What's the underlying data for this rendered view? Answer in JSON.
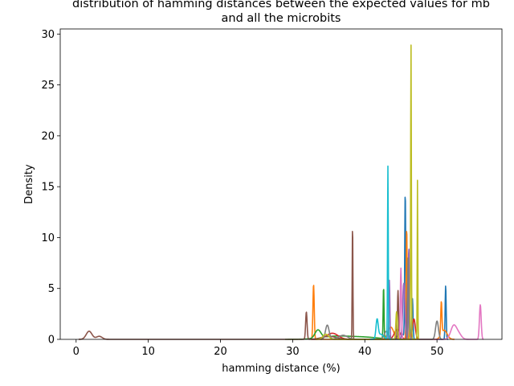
{
  "chart_data": {
    "type": "line",
    "title_lines": [
      "distribution of hamming distances between the expected values for mb",
      "and all the microbits"
    ],
    "xlabel": "hamming distance (%)",
    "ylabel": "Density",
    "xlim": [
      -2.2,
      59
    ],
    "ylim": [
      0,
      30.5
    ],
    "xticks": [
      0,
      10,
      20,
      30,
      40,
      50
    ],
    "yticks": [
      0,
      5,
      10,
      15,
      20,
      25,
      30
    ],
    "grid": false,
    "legend": "none",
    "series": [
      {
        "color": "#1f77b4",
        "peaks": [
          [
            45.6,
            14.3,
            0.07
          ],
          [
            46.6,
            4.0,
            0.08
          ],
          [
            51.2,
            5.3,
            0.07
          ],
          [
            45.0,
            0.6,
            0.4
          ]
        ]
      },
      {
        "color": "#ff7f0e",
        "peaks": [
          [
            32.9,
            5.4,
            0.09
          ],
          [
            45.8,
            11.0,
            0.07
          ],
          [
            50.6,
            3.2,
            0.08
          ],
          [
            43.6,
            1.2,
            0.4
          ],
          [
            51.0,
            0.9,
            0.4
          ]
        ]
      },
      {
        "color": "#2ca02c",
        "peaks": [
          [
            42.6,
            5.1,
            0.06
          ],
          [
            33.5,
            0.8,
            0.4
          ],
          [
            36.0,
            0.3,
            2.0
          ],
          [
            40.0,
            0.2,
            2.0
          ]
        ]
      },
      {
        "color": "#d62728",
        "peaks": [
          [
            46.0,
            6.5,
            0.1
          ],
          [
            46.8,
            2.0,
            0.2
          ],
          [
            35.5,
            0.6,
            0.8
          ],
          [
            44.5,
            1.0,
            0.4
          ]
        ]
      },
      {
        "color": "#9467bd",
        "peaks": [
          [
            46.1,
            9.0,
            0.08
          ],
          [
            43.4,
            5.8,
            0.07
          ],
          [
            45.4,
            5.5,
            0.15
          ]
        ]
      },
      {
        "color": "#8c564b",
        "peaks": [
          [
            38.3,
            11.4,
            0.05
          ],
          [
            1.8,
            0.8,
            0.4
          ],
          [
            3.2,
            0.3,
            0.4
          ],
          [
            31.9,
            2.7,
            0.1
          ],
          [
            44.6,
            4.8,
            0.08
          ],
          [
            35.0,
            0.3,
            1.0
          ]
        ]
      },
      {
        "color": "#e377c2",
        "peaks": [
          [
            56.0,
            3.4,
            0.12
          ],
          [
            52.3,
            1.3,
            0.4
          ],
          [
            45.0,
            7.0,
            0.08
          ],
          [
            53.0,
            0.5,
            0.4
          ]
        ]
      },
      {
        "color": "#7f7f7f",
        "peaks": [
          [
            34.8,
            1.4,
            0.25
          ],
          [
            46.0,
            8.0,
            0.07
          ],
          [
            50.0,
            1.8,
            0.2
          ],
          [
            37.0,
            0.4,
            0.6
          ],
          [
            43.0,
            0.8,
            0.3
          ]
        ]
      },
      {
        "color": "#bcbd22",
        "peaks": [
          [
            46.4,
            29.0,
            0.05
          ],
          [
            47.3,
            15.8,
            0.04
          ],
          [
            44.4,
            2.7,
            0.1
          ],
          [
            34.6,
            0.5,
            0.4
          ]
        ]
      },
      {
        "color": "#17becf",
        "peaks": [
          [
            43.2,
            17.0,
            0.05
          ],
          [
            41.7,
            1.8,
            0.15
          ],
          [
            42.2,
            0.5,
            0.4
          ]
        ]
      }
    ]
  }
}
